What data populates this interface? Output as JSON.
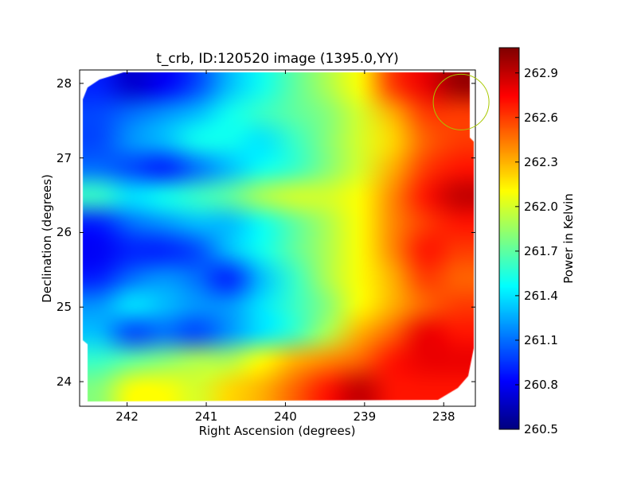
{
  "chart_data": {
    "type": "heatmap",
    "title": "t_crb, ID:120520 image (1395.0,YY)",
    "xlabel": "Right Ascension (degrees)",
    "ylabel": "Declination (degrees)",
    "xlim": [
      242.6,
      237.6
    ],
    "ylim": [
      23.67,
      28.18
    ],
    "xticks": [
      "242",
      "241",
      "240",
      "239",
      "238"
    ],
    "xtick_values": [
      242,
      241,
      240,
      239,
      238
    ],
    "yticks": [
      "28",
      "27",
      "26",
      "25",
      "24"
    ],
    "ytick_values": [
      28,
      27,
      26,
      25,
      24
    ],
    "colormap": "jet",
    "colorbar": {
      "label": "Power in Kelvin",
      "range": [
        260.5,
        263.07
      ],
      "ticks": [
        "262.9",
        "262.6",
        "262.3",
        "262.0",
        "261.7",
        "261.4",
        "261.1",
        "260.8",
        "260.5"
      ],
      "tick_values": [
        262.9,
        262.6,
        262.3,
        262.0,
        261.7,
        261.4,
        261.1,
        260.8,
        260.5
      ]
    },
    "grid_note_rows_top_to_bottom_cols_east_to_west": true,
    "grid": [
      [
        260.9,
        260.7,
        260.8,
        261.0,
        261.3,
        261.5,
        261.7,
        261.9,
        262.1,
        262.6,
        262.8,
        263.0
      ],
      [
        261.0,
        261.1,
        261.2,
        261.3,
        261.5,
        261.6,
        261.7,
        261.8,
        262.0,
        262.3,
        262.6,
        262.6
      ],
      [
        261.0,
        261.2,
        261.3,
        261.5,
        261.5,
        261.4,
        261.6,
        261.8,
        262.0,
        262.2,
        262.5,
        262.6
      ],
      [
        261.1,
        261.0,
        260.9,
        261.1,
        261.3,
        261.5,
        261.6,
        261.8,
        262.0,
        262.3,
        262.6,
        262.7
      ],
      [
        261.6,
        261.4,
        261.5,
        261.6,
        261.7,
        261.9,
        262.0,
        262.0,
        262.1,
        262.4,
        262.7,
        262.9
      ],
      [
        260.9,
        261.1,
        261.2,
        261.3,
        261.3,
        261.5,
        261.7,
        261.9,
        262.1,
        262.4,
        262.6,
        262.7
      ],
      [
        260.8,
        260.9,
        260.9,
        261.0,
        261.3,
        261.5,
        261.7,
        261.9,
        262.1,
        262.4,
        262.7,
        262.6
      ],
      [
        260.9,
        261.1,
        261.2,
        261.1,
        260.9,
        261.3,
        261.6,
        261.9,
        262.1,
        262.3,
        262.6,
        262.5
      ],
      [
        261.2,
        261.4,
        261.3,
        261.2,
        261.2,
        261.4,
        261.6,
        261.8,
        262.1,
        262.3,
        262.5,
        262.6
      ],
      [
        261.3,
        261.0,
        261.1,
        261.0,
        261.2,
        261.4,
        261.6,
        261.9,
        262.3,
        262.5,
        262.8,
        262.7
      ],
      [
        261.6,
        261.7,
        261.8,
        261.9,
        261.9,
        262.1,
        262.3,
        262.4,
        262.5,
        262.7,
        262.8,
        262.8
      ],
      [
        261.8,
        262.1,
        262.1,
        262.0,
        262.2,
        262.3,
        262.5,
        262.7,
        262.9,
        262.7,
        262.7,
        262.7
      ]
    ],
    "marker": {
      "type": "circle",
      "ra": 237.78,
      "dec": 27.75,
      "color": "#a8c800"
    }
  }
}
